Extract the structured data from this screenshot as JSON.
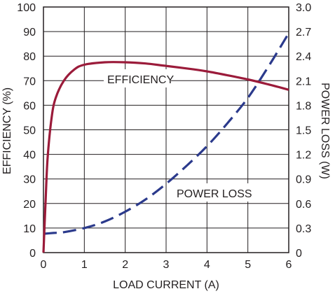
{
  "chart_data": {
    "type": "line",
    "xlabel": "LOAD CURRENT (A)",
    "ylabel": "EFFICIENCY (%)",
    "y2label": "POWER LOSS (W)",
    "xlim": [
      0,
      6
    ],
    "ylim": [
      0,
      100
    ],
    "y2lim": [
      0,
      3.0
    ],
    "grid": true,
    "x_ticks": [
      "0",
      "1",
      "2",
      "3",
      "4",
      "5",
      "6"
    ],
    "y_ticks": [
      "0",
      "10",
      "20",
      "30",
      "40",
      "50",
      "60",
      "70",
      "80",
      "90",
      "100"
    ],
    "y2_ticks": [
      "0",
      "0.3",
      "0.6",
      "0.9",
      "1.2",
      "1.5",
      "1.8",
      "2.1",
      "2.4",
      "2.7",
      "3.0"
    ],
    "colors": {
      "efficiency": "#9b1b3a",
      "power_loss": "#2b3a8c",
      "grid": "#231f20"
    },
    "annotations": [
      {
        "text": "EFFICIENCY",
        "series": "efficiency"
      },
      {
        "text": "POWER LOSS",
        "series": "power_loss"
      }
    ],
    "series": [
      {
        "key": "efficiency",
        "axis": "left",
        "style": "solid",
        "x": [
          0,
          0.05,
          0.1,
          0.2,
          0.3,
          0.5,
          0.75,
          1.0,
          1.5,
          2.0,
          2.5,
          3.0,
          3.5,
          4.0,
          4.5,
          5.0,
          5.5,
          6.0
        ],
        "y": [
          0,
          20,
          38,
          55,
          63,
          70,
          74.5,
          76.5,
          77.5,
          77.5,
          77,
          76,
          75,
          73.8,
          72.2,
          70.5,
          68.5,
          66.3
        ]
      },
      {
        "key": "power_loss",
        "axis": "right",
        "style": "dashed",
        "x": [
          0,
          0.25,
          0.5,
          1.0,
          1.5,
          2.0,
          2.5,
          3.0,
          3.5,
          4.0,
          4.5,
          5.0,
          5.5,
          6.0
        ],
        "y": [
          0.23,
          0.24,
          0.25,
          0.3,
          0.38,
          0.5,
          0.65,
          0.84,
          1.06,
          1.3,
          1.58,
          1.89,
          2.27,
          2.68
        ]
      }
    ]
  }
}
